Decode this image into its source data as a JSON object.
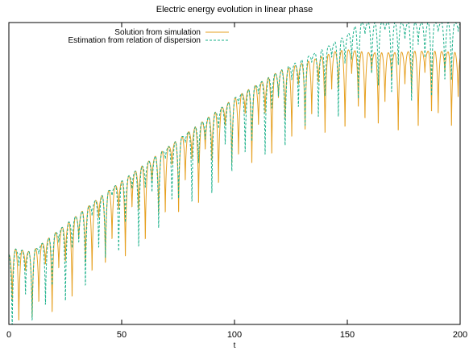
{
  "chart_data": {
    "type": "line",
    "title": "Electric energy evolution in linear phase",
    "xlabel": "t",
    "ylabel": "",
    "xlim": [
      0,
      200
    ],
    "ylim": [
      0,
      1
    ],
    "y_scale": "log",
    "y_tick_labels_visible": false,
    "x_ticks": [
      0,
      50,
      100,
      150,
      200
    ],
    "x_tick_labels": [
      "0",
      "50",
      "100",
      "150",
      "200"
    ],
    "legend_position": "top-center",
    "oscillation_period": 2.95,
    "series": [
      {
        "name": "Solution from simulation",
        "style": "solid",
        "color": "#e6a020",
        "envelope": {
          "x": [
            0,
            1,
            3,
            10,
            20,
            40,
            60,
            80,
            100,
            120,
            140,
            145,
            150,
            160,
            170,
            180,
            190,
            200
          ],
          "y": [
            0.23,
            0.24,
            0.25,
            0.24,
            0.3,
            0.42,
            0.53,
            0.64,
            0.75,
            0.84,
            0.89,
            0.905,
            0.91,
            0.9,
            0.9,
            0.905,
            0.905,
            0.9
          ]
        },
        "trough_depth_range": [
          0.08,
          0.32
        ]
      },
      {
        "name": "Estimation from relation of dispersion",
        "style": "dashed",
        "color": "#1ab08a",
        "envelope": {
          "x": [
            0,
            1,
            3,
            10,
            20,
            40,
            60,
            80,
            100,
            120,
            140,
            150,
            155,
            160,
            170,
            180,
            190,
            200
          ],
          "y": [
            0.23,
            0.24,
            0.25,
            0.24,
            0.3,
            0.42,
            0.53,
            0.64,
            0.75,
            0.84,
            0.915,
            0.96,
            1.0,
            1.0,
            1.0,
            1.0,
            1.0,
            1.0
          ]
        },
        "trough_depth_range": [
          0.03,
          0.32
        ]
      }
    ],
    "grid": false
  }
}
